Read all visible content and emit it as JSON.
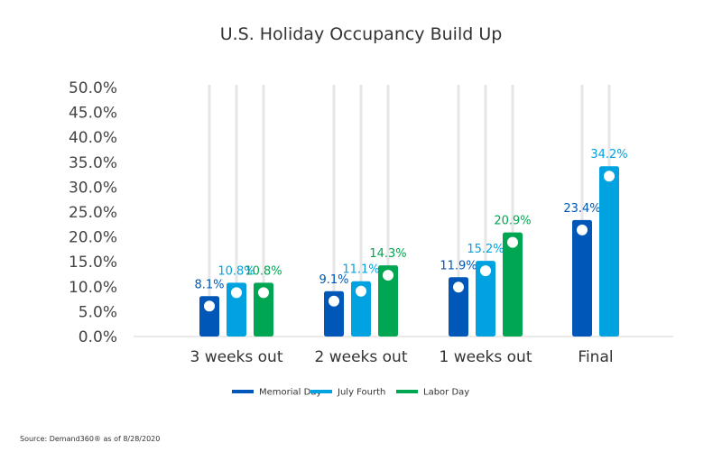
{
  "chart_data": {
    "type": "bar",
    "title": "U.S. Holiday Occupancy Build Up",
    "categories": [
      "3 weeks out",
      "2 weeks out",
      "1 weeks out",
      "Final"
    ],
    "series": [
      {
        "name": "Memorial Day",
        "values": [
          8.1,
          9.1,
          11.9,
          23.4
        ],
        "labels": [
          "8.1%",
          "9.1%",
          "11.9%",
          "23.4%"
        ],
        "color": "#0057b7",
        "label_color": "#0057b7"
      },
      {
        "name": "July Fourth",
        "values": [
          10.8,
          11.1,
          15.2,
          34.2
        ],
        "labels": [
          "10.8%",
          "11.1%",
          "15.2%",
          "34.2%"
        ],
        "color": "#00a3e0",
        "label_color": "#00a3e0"
      },
      {
        "name": "Labor Day",
        "values": [
          10.8,
          14.3,
          20.9,
          null
        ],
        "labels": [
          "10.8%",
          "14.3%",
          "20.9%",
          ""
        ],
        "color": "#00a651",
        "label_color": "#00a651"
      }
    ],
    "yticks": [
      "0.0%",
      "5.0%",
      "10.0%",
      "15.0%",
      "20.0%",
      "25.0%",
      "30.0%",
      "35.0%",
      "40.0%",
      "45.0%",
      "50.0%"
    ],
    "ylim": [
      0,
      50
    ],
    "legend_position": "bottom-center",
    "grid": false
  },
  "source_note": "Source: Demand360® as of 8/28/2020"
}
